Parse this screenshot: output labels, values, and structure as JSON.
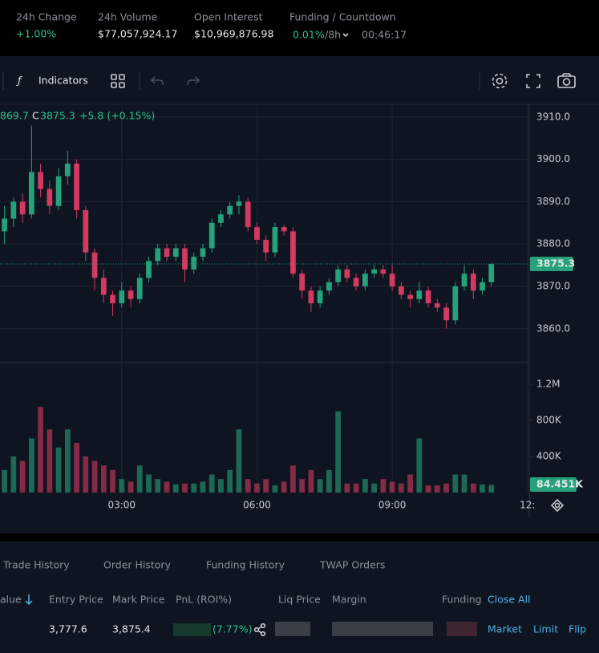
{
  "header": {
    "stats": [
      {
        "label": "24h Change",
        "value": "+1.00%"
      },
      {
        "label": "24h Volume",
        "value": "$77,057,924.17"
      },
      {
        "label": "Open Interest",
        "value": "$10,969,876.98"
      }
    ],
    "funding": {
      "label": "Funding / Countdown",
      "rate": "0.01%",
      "interval": "/8h",
      "countdown": "00:46:17"
    }
  },
  "toolbar": {
    "indicators": "Indicators"
  },
  "chart_data": {
    "type": "candlestick",
    "legend": {
      "open_tail": "869.7",
      "close_prefix": "C",
      "close": "3875.3",
      "change": "+5.8 (+0.15%)"
    },
    "up_color": "#26a17b",
    "down_color": "#d23a62",
    "grid": true,
    "candles": [
      [
        3883,
        3889,
        3880,
        3886
      ],
      [
        3886,
        3891,
        3884,
        3890
      ],
      [
        3890,
        3892,
        3885,
        3887
      ],
      [
        3887,
        3908,
        3886,
        3897
      ],
      [
        3897,
        3899,
        3891,
        3893
      ],
      [
        3893,
        3895,
        3887,
        3889
      ],
      [
        3889,
        3898,
        3888,
        3896
      ],
      [
        3896,
        3902,
        3894,
        3899
      ],
      [
        3899,
        3900,
        3886,
        3888
      ],
      [
        3888,
        3889,
        3876,
        3878
      ],
      [
        3878,
        3879,
        3869,
        3872
      ],
      [
        3872,
        3874,
        3866,
        3868
      ],
      [
        3868,
        3869,
        3863,
        3866
      ],
      [
        3866,
        3871,
        3865,
        3869
      ],
      [
        3869,
        3870,
        3865,
        3867
      ],
      [
        3867,
        3873,
        3866,
        3872
      ],
      [
        3872,
        3877,
        3871,
        3876
      ],
      [
        3876,
        3880,
        3875,
        3879
      ],
      [
        3879,
        3880,
        3876,
        3877
      ],
      [
        3877,
        3880,
        3876,
        3879
      ],
      [
        3879,
        3880,
        3871,
        3874
      ],
      [
        3874,
        3878,
        3873,
        3877
      ],
      [
        3877,
        3880,
        3876,
        3879
      ],
      [
        3879,
        3886,
        3878,
        3885
      ],
      [
        3885,
        3888,
        3884,
        3887
      ],
      [
        3887,
        3890,
        3886,
        3889
      ],
      [
        3889,
        3891.5,
        3887,
        3890
      ],
      [
        3890,
        3891,
        3883,
        3884
      ],
      [
        3884,
        3885,
        3880,
        3881
      ],
      [
        3881,
        3882,
        3876,
        3878
      ],
      [
        3878,
        3885,
        3877,
        3884
      ],
      [
        3884,
        3884.5,
        3882,
        3883
      ],
      [
        3883,
        3884,
        3872,
        3873
      ],
      [
        3873,
        3874,
        3867,
        3869
      ],
      [
        3869,
        3870,
        3864,
        3866
      ],
      [
        3866,
        3870,
        3865,
        3869
      ],
      [
        3869,
        3872,
        3868,
        3871
      ],
      [
        3871,
        3875,
        3870,
        3874
      ],
      [
        3874,
        3875,
        3871,
        3872
      ],
      [
        3872,
        3873,
        3869,
        3870
      ],
      [
        3870,
        3874,
        3869,
        3873
      ],
      [
        3873,
        3875,
        3872,
        3874
      ],
      [
        3874,
        3875,
        3872,
        3873
      ],
      [
        3873,
        3875,
        3869,
        3870
      ],
      [
        3870,
        3871,
        3867,
        3868
      ],
      [
        3868,
        3869,
        3865,
        3867
      ],
      [
        3867,
        3871,
        3866,
        3869
      ],
      [
        3869,
        3870,
        3865,
        3866
      ],
      [
        3866,
        3867,
        3864,
        3865
      ],
      [
        3865,
        3866,
        3860,
        3862
      ],
      [
        3862,
        3871,
        3861,
        3870
      ],
      [
        3870,
        3875,
        3869,
        3873
      ],
      [
        3873,
        3874,
        3867,
        3869
      ],
      [
        3869,
        3872,
        3868,
        3871
      ],
      [
        3871,
        3875.5,
        3870,
        3875.3
      ]
    ],
    "volumes": [
      250000,
      400000,
      350000,
      600000,
      950000,
      700000,
      500000,
      700000,
      550000,
      400000,
      350000,
      300000,
      250000,
      150000,
      120000,
      300000,
      200000,
      150000,
      120000,
      90000,
      100000,
      100000,
      120000,
      200000,
      150000,
      250000,
      700000,
      150000,
      100000,
      150000,
      80000,
      120000,
      300000,
      150000,
      250000,
      150000,
      250000,
      900000,
      100000,
      100000,
      150000,
      100000,
      150000,
      120000,
      100000,
      200000,
      600000,
      80000,
      80000,
      100000,
      200000,
      200000,
      100000,
      90000,
      84451
    ],
    "xlim": [
      -0.5,
      58.2
    ],
    "xticks": [
      {
        "value": 13,
        "label": "03:00"
      },
      {
        "value": 28,
        "label": "06:00"
      },
      {
        "value": 43,
        "label": "09:00"
      },
      {
        "value": 58,
        "label": "12:"
      }
    ],
    "ylim": [
      3852,
      3913
    ],
    "yticks": [
      {
        "value": 3860,
        "label": "3860.0"
      },
      {
        "value": 3870,
        "label": "3870.0"
      },
      {
        "value": 3880,
        "label": "3880.0"
      },
      {
        "value": 3890,
        "label": "3890.0"
      },
      {
        "value": 3900,
        "label": "3900.0"
      },
      {
        "value": 3910,
        "label": "3910.0"
      }
    ],
    "volume_ylim": [
      0,
      1440000
    ],
    "volume_ticks": [
      {
        "value": 400000,
        "label": "400K"
      },
      {
        "value": 800000,
        "label": "800K"
      },
      {
        "value": 1200000,
        "label": "1.2M"
      }
    ],
    "last_price": 3875.3,
    "last_volume": {
      "value": 84451,
      "label": "84.451K"
    }
  },
  "tabs": [
    "Trade History",
    "Order History",
    "Funding History",
    "TWAP Orders"
  ],
  "positions": {
    "columns": [
      "alue",
      "Entry Price",
      "Mark Price",
      "PnL (ROI%)",
      "Liq Price",
      "Margin",
      "Funding"
    ],
    "close_all": "Close All",
    "row": {
      "entry": "3,777.6",
      "mark": "3,875.4",
      "roi": "(7.77%)"
    },
    "actions": [
      "Market",
      "Limit",
      "Flip"
    ]
  }
}
